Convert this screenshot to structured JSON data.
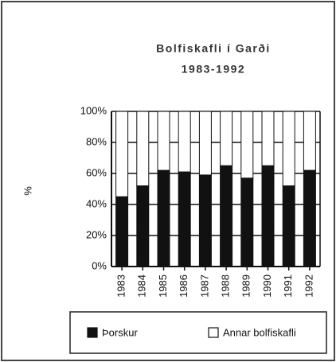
{
  "chart_data": {
    "type": "bar",
    "stacked": true,
    "title": "Bolfiskafli í Garði",
    "subtitle": "1983-1992",
    "y_label": "%",
    "categories": [
      "1983",
      "1984",
      "1985",
      "1986",
      "1987",
      "1988",
      "1989",
      "1990",
      "1991",
      "1992"
    ],
    "series": [
      {
        "name": "Þorskur",
        "color": "#111111",
        "values": [
          45,
          52,
          62,
          61,
          59,
          65,
          57,
          65,
          52,
          62
        ]
      },
      {
        "name": "Annar bolfiskafli",
        "color": "#ffffff",
        "values": [
          55,
          48,
          38,
          39,
          41,
          35,
          43,
          35,
          48,
          38
        ]
      }
    ],
    "ylim": [
      0,
      100
    ],
    "yticks": [
      {
        "value": 0,
        "label": "0%"
      },
      {
        "value": 20,
        "label": "20%"
      },
      {
        "value": 40,
        "label": "40%"
      },
      {
        "value": 60,
        "label": "60%"
      },
      {
        "value": 80,
        "label": "80%"
      },
      {
        "value": 100,
        "label": "100%"
      }
    ],
    "grid": true,
    "legend": "bottom"
  }
}
